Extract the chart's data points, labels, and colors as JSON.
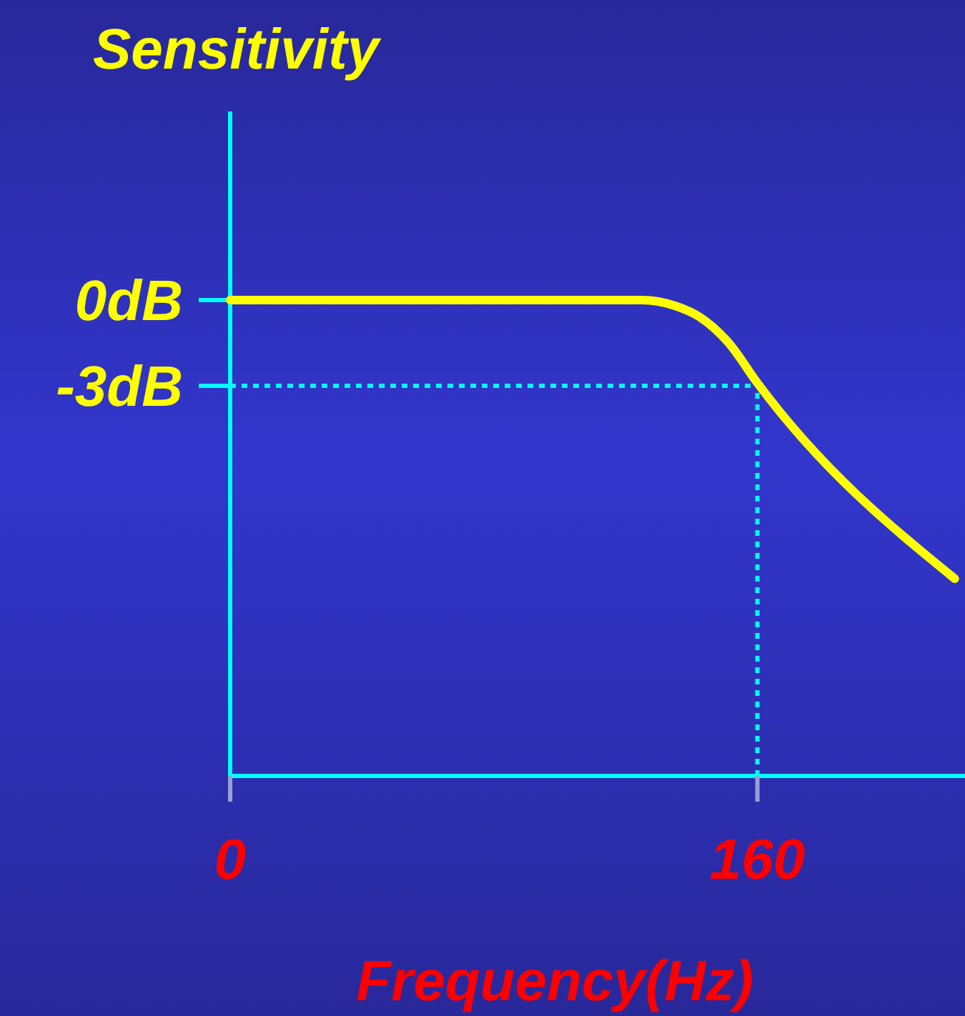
{
  "chart_data": {
    "type": "line",
    "ylabel": "Sensitivity",
    "xlabel": "Frequency(Hz)",
    "x": [
      0,
      125,
      135,
      142.6,
      151.3,
      160,
      219.9
    ],
    "series": [
      {
        "color": "#ffff00",
        "values": [
          0,
          0,
          -0.2,
          -0.6,
          -1.5,
          -2.9,
          -9.75
        ]
      }
    ],
    "xlim": [
      0,
      223
    ],
    "xticks": [
      0,
      160
    ],
    "ylim": [
      -16.65,
      6.6
    ],
    "yticks": [
      {
        "value": 0,
        "label": "0dB"
      },
      {
        "value": -3,
        "label": "-3dB"
      }
    ],
    "ref_lines": [
      {
        "axis": "y",
        "value": -3,
        "color": "#00ffff",
        "line_style": "dotted"
      },
      {
        "axis": "x",
        "value": 160,
        "color": "#00ffff",
        "line_style": "dotted"
      }
    ]
  }
}
